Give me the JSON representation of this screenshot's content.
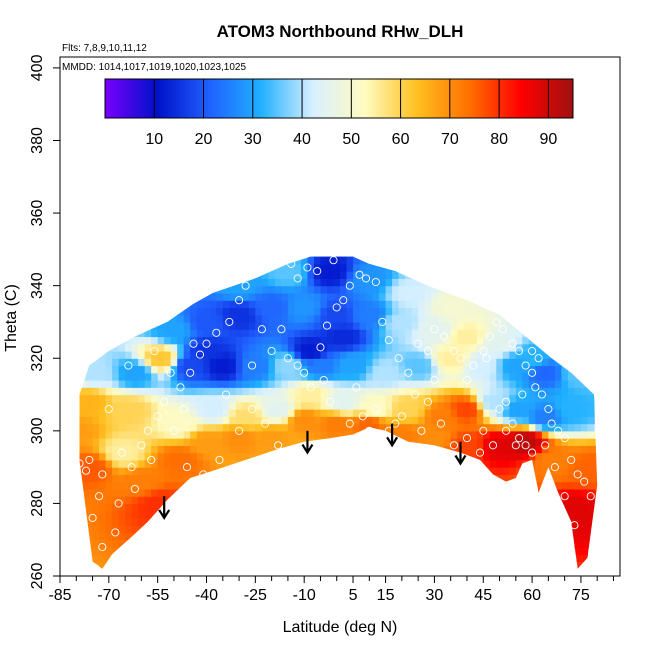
{
  "chart_data": {
    "type": "heatmap",
    "title": "ATOM3 Northbound RHw_DLH",
    "notes": [
      "Flts: 7,8,9,10,11,12",
      "MMDD: 1014,1017,1019,1020,1023,1025"
    ],
    "xlabel": "Latitude (deg N)",
    "ylabel": "Theta (C)",
    "xlim": [
      -85,
      87
    ],
    "ylim": [
      260,
      403
    ],
    "x_ticks": [
      -85,
      -70,
      -55,
      -40,
      -25,
      -10,
      5,
      15,
      30,
      45,
      60,
      75
    ],
    "y_ticks": [
      260,
      280,
      300,
      320,
      340,
      360,
      380,
      400
    ],
    "colorbar": {
      "range": [
        0,
        95
      ],
      "ticks": [
        10,
        20,
        30,
        40,
        50,
        60,
        70,
        80,
        90
      ],
      "colors": [
        "#7a00ff",
        "#0010c8",
        "#2060ff",
        "#20b0ff",
        "#d8f0ff",
        "#fffbc0",
        "#ffc020",
        "#ff7000",
        "#ff0000",
        "#a01010"
      ]
    },
    "arrows": [
      {
        "lat": -53,
        "theta": 282
      },
      {
        "lat": -9,
        "theta": 300
      },
      {
        "lat": 17,
        "theta": 302
      },
      {
        "lat": 38,
        "theta": 297
      }
    ],
    "top_boundary": [
      [
        -79,
        310
      ],
      [
        -76,
        318
      ],
      [
        -70,
        322
      ],
      [
        -62,
        326
      ],
      [
        -52,
        330
      ],
      [
        -44,
        335
      ],
      [
        -38,
        338
      ],
      [
        -25,
        342
      ],
      [
        -15,
        346
      ],
      [
        -8,
        348
      ],
      [
        5,
        348
      ],
      [
        10,
        346
      ],
      [
        18,
        344
      ],
      [
        28,
        340
      ],
      [
        40,
        336
      ],
      [
        50,
        332
      ],
      [
        58,
        326
      ],
      [
        66,
        320
      ],
      [
        72,
        316
      ],
      [
        79,
        310
      ]
    ],
    "bottom_boundary": [
      [
        80,
        285
      ],
      [
        77,
        265
      ],
      [
        74,
        262
      ],
      [
        72,
        275
      ],
      [
        68,
        283
      ],
      [
        65,
        290
      ],
      [
        62,
        283
      ],
      [
        60,
        292
      ],
      [
        57,
        291
      ],
      [
        55,
        287
      ],
      [
        52,
        286
      ],
      [
        48,
        288
      ],
      [
        44,
        292
      ],
      [
        38,
        294
      ],
      [
        30,
        296
      ],
      [
        22,
        297
      ],
      [
        15,
        300
      ],
      [
        10,
        301
      ],
      [
        5,
        299
      ],
      [
        -2,
        298
      ],
      [
        -10,
        297
      ],
      [
        -18,
        295
      ],
      [
        -28,
        292
      ],
      [
        -38,
        289
      ],
      [
        -45,
        287
      ],
      [
        -52,
        281
      ],
      [
        -58,
        275
      ],
      [
        -64,
        270
      ],
      [
        -69,
        266
      ],
      [
        -72,
        262
      ],
      [
        -75,
        264
      ],
      [
        -79,
        292
      ]
    ],
    "field": [
      {
        "lat": -80,
        "theta": 300,
        "rh": 68
      },
      {
        "lat": -75,
        "theta": 290,
        "rh": 76
      },
      {
        "lat": -66,
        "theta": 294,
        "rh": 55
      },
      {
        "lat": -60,
        "theta": 286,
        "rh": 72
      },
      {
        "lat": -55,
        "theta": 280,
        "rh": 80
      },
      {
        "lat": -48,
        "theta": 292,
        "rh": 74
      },
      {
        "lat": -40,
        "theta": 297,
        "rh": 68
      },
      {
        "lat": -30,
        "theta": 298,
        "rh": 70
      },
      {
        "lat": -20,
        "theta": 298,
        "rh": 68
      },
      {
        "lat": -10,
        "theta": 303,
        "rh": 70
      },
      {
        "lat": 0,
        "theta": 302,
        "rh": 72
      },
      {
        "lat": 10,
        "theta": 302,
        "rh": 75
      },
      {
        "lat": 20,
        "theta": 299,
        "rh": 72
      },
      {
        "lat": 30,
        "theta": 298,
        "rh": 70
      },
      {
        "lat": 40,
        "theta": 296,
        "rh": 78
      },
      {
        "lat": 50,
        "theta": 296,
        "rh": 88
      },
      {
        "lat": 58,
        "theta": 297,
        "rh": 92
      },
      {
        "lat": 66,
        "theta": 292,
        "rh": 72
      },
      {
        "lat": 73,
        "theta": 278,
        "rh": 88
      },
      {
        "lat": 78,
        "theta": 290,
        "rh": 75
      },
      {
        "lat": -76,
        "theta": 308,
        "rh": 65
      },
      {
        "lat": -64,
        "theta": 306,
        "rh": 60
      },
      {
        "lat": -48,
        "theta": 302,
        "rh": 52
      },
      {
        "lat": -38,
        "theta": 306,
        "rh": 42
      },
      {
        "lat": -28,
        "theta": 304,
        "rh": 58
      },
      {
        "lat": -18,
        "theta": 306,
        "rh": 45
      },
      {
        "lat": -8,
        "theta": 310,
        "rh": 55
      },
      {
        "lat": 2,
        "theta": 308,
        "rh": 45
      },
      {
        "lat": 12,
        "theta": 306,
        "rh": 52
      },
      {
        "lat": 22,
        "theta": 306,
        "rh": 60
      },
      {
        "lat": 32,
        "theta": 304,
        "rh": 72
      },
      {
        "lat": 40,
        "theta": 306,
        "rh": 78
      },
      {
        "lat": 48,
        "theta": 308,
        "rh": 40
      },
      {
        "lat": 56,
        "theta": 306,
        "rh": 30
      },
      {
        "lat": 64,
        "theta": 304,
        "rh": 25
      },
      {
        "lat": 72,
        "theta": 306,
        "rh": 32
      },
      {
        "lat": -74,
        "theta": 316,
        "rh": 40
      },
      {
        "lat": -62,
        "theta": 316,
        "rh": 30
      },
      {
        "lat": -54,
        "theta": 320,
        "rh": 62
      },
      {
        "lat": -45,
        "theta": 318,
        "rh": 18
      },
      {
        "lat": -35,
        "theta": 318,
        "rh": 12
      },
      {
        "lat": -25,
        "theta": 318,
        "rh": 25
      },
      {
        "lat": -15,
        "theta": 318,
        "rh": 38
      },
      {
        "lat": -5,
        "theta": 318,
        "rh": 25
      },
      {
        "lat": 5,
        "theta": 318,
        "rh": 30
      },
      {
        "lat": 15,
        "theta": 316,
        "rh": 40
      },
      {
        "lat": 25,
        "theta": 318,
        "rh": 35
      },
      {
        "lat": 35,
        "theta": 320,
        "rh": 55
      },
      {
        "lat": 45,
        "theta": 318,
        "rh": 42
      },
      {
        "lat": 55,
        "theta": 318,
        "rh": 30
      },
      {
        "lat": 64,
        "theta": 316,
        "rh": 22
      },
      {
        "lat": 74,
        "theta": 316,
        "rh": 35
      },
      {
        "lat": -50,
        "theta": 328,
        "rh": 30
      },
      {
        "lat": -40,
        "theta": 330,
        "rh": 20
      },
      {
        "lat": -30,
        "theta": 332,
        "rh": 15
      },
      {
        "lat": -20,
        "theta": 334,
        "rh": 22
      },
      {
        "lat": -10,
        "theta": 334,
        "rh": 28
      },
      {
        "lat": 0,
        "theta": 332,
        "rh": 18
      },
      {
        "lat": 10,
        "theta": 332,
        "rh": 25
      },
      {
        "lat": 20,
        "theta": 330,
        "rh": 40
      },
      {
        "lat": 30,
        "theta": 328,
        "rh": 45
      },
      {
        "lat": 40,
        "theta": 326,
        "rh": 55
      },
      {
        "lat": 50,
        "theta": 324,
        "rh": 45
      },
      {
        "lat": 60,
        "theta": 320,
        "rh": 32
      },
      {
        "lat": -30,
        "theta": 340,
        "rh": 30
      },
      {
        "lat": -15,
        "theta": 344,
        "rh": 35
      },
      {
        "lat": -2,
        "theta": 344,
        "rh": 12
      },
      {
        "lat": 10,
        "theta": 342,
        "rh": 28
      },
      {
        "lat": 22,
        "theta": 338,
        "rh": 42
      },
      {
        "lat": 35,
        "theta": 334,
        "rh": 50
      },
      {
        "lat": -8,
        "theta": 322,
        "rh": 12
      },
      {
        "lat": -40,
        "theta": 322,
        "rh": 15
      },
      {
        "lat": 2,
        "theta": 326,
        "rh": 14
      }
    ],
    "obs": [
      [
        -79,
        291
      ],
      [
        -77,
        289
      ],
      [
        -76,
        292
      ],
      [
        -72,
        288
      ],
      [
        -73,
        282
      ],
      [
        -75,
        276
      ],
      [
        -72,
        268
      ],
      [
        -74,
        262
      ],
      [
        -67,
        280
      ],
      [
        -66,
        294
      ],
      [
        -63,
        290
      ],
      [
        -60,
        296
      ],
      [
        -58,
        300
      ],
      [
        -55,
        304
      ],
      [
        -53,
        308
      ],
      [
        -48,
        312
      ],
      [
        -45,
        316
      ],
      [
        -42,
        321
      ],
      [
        -40,
        324
      ],
      [
        -37,
        327
      ],
      [
        -33,
        330
      ],
      [
        -30,
        336
      ],
      [
        -28,
        340
      ],
      [
        -23,
        328
      ],
      [
        -20,
        322
      ],
      [
        -15,
        320
      ],
      [
        -12,
        318
      ],
      [
        -10,
        316
      ],
      [
        -8,
        312
      ],
      [
        -5,
        323
      ],
      [
        -3,
        329
      ],
      [
        0,
        334
      ],
      [
        2,
        336
      ],
      [
        4,
        340
      ],
      [
        -6,
        344
      ],
      [
        -9,
        345
      ],
      [
        -12,
        342
      ],
      [
        -14,
        346
      ],
      [
        -1,
        347
      ],
      [
        7,
        343
      ],
      [
        9,
        342
      ],
      [
        12,
        341
      ],
      [
        14,
        330
      ],
      [
        16,
        325
      ],
      [
        19,
        320
      ],
      [
        22,
        316
      ],
      [
        25,
        324
      ],
      [
        28,
        322
      ],
      [
        30,
        328
      ],
      [
        33,
        326
      ],
      [
        36,
        322
      ],
      [
        38,
        320
      ],
      [
        40,
        314
      ],
      [
        42,
        318
      ],
      [
        45,
        322
      ],
      [
        47,
        326
      ],
      [
        49,
        330
      ],
      [
        51,
        328
      ],
      [
        54,
        324
      ],
      [
        56,
        322
      ],
      [
        58,
        318
      ],
      [
        60,
        316
      ],
      [
        61,
        312
      ],
      [
        63,
        310
      ],
      [
        65,
        306
      ],
      [
        66,
        302
      ],
      [
        68,
        300
      ],
      [
        70,
        298
      ],
      [
        72,
        292
      ],
      [
        74,
        288
      ],
      [
        76,
        286
      ],
      [
        78,
        282
      ],
      [
        73,
        274
      ],
      [
        70,
        282
      ],
      [
        60,
        294
      ],
      [
        58,
        296
      ],
      [
        56,
        298
      ],
      [
        54,
        302
      ],
      [
        52,
        300
      ],
      [
        48,
        296
      ],
      [
        44,
        294
      ],
      [
        40,
        298
      ],
      [
        36,
        296
      ],
      [
        32,
        302
      ],
      [
        28,
        308
      ],
      [
        24,
        310
      ],
      [
        20,
        304
      ],
      [
        18,
        302
      ],
      [
        16,
        300
      ],
      [
        12,
        306
      ],
      [
        10,
        300
      ],
      [
        8,
        304
      ],
      [
        6,
        312
      ],
      [
        4,
        302
      ],
      [
        -2,
        308
      ],
      [
        -4,
        314
      ],
      [
        -18,
        296
      ],
      [
        -22,
        302
      ],
      [
        -26,
        306
      ],
      [
        -30,
        300
      ],
      [
        -36,
        292
      ],
      [
        -41,
        288
      ],
      [
        -46,
        290
      ],
      [
        -50,
        300
      ],
      [
        -57,
        292
      ],
      [
        -62,
        284
      ],
      [
        -68,
        272
      ],
      [
        -51,
        316
      ],
      [
        -47,
        306
      ],
      [
        -44,
        324
      ],
      [
        -26,
        318
      ],
      [
        -17,
        328
      ],
      [
        -34,
        310
      ],
      [
        -56,
        322
      ],
      [
        -64,
        318
      ],
      [
        -70,
        306
      ],
      [
        60,
        322
      ],
      [
        62,
        320
      ],
      [
        57,
        310
      ],
      [
        52,
        308
      ],
      [
        50,
        306
      ],
      [
        46,
        320
      ],
      [
        55,
        296
      ],
      [
        64,
        296
      ],
      [
        67,
        290
      ],
      [
        45,
        300
      ],
      [
        30,
        314
      ],
      [
        26,
        300
      ]
    ]
  }
}
